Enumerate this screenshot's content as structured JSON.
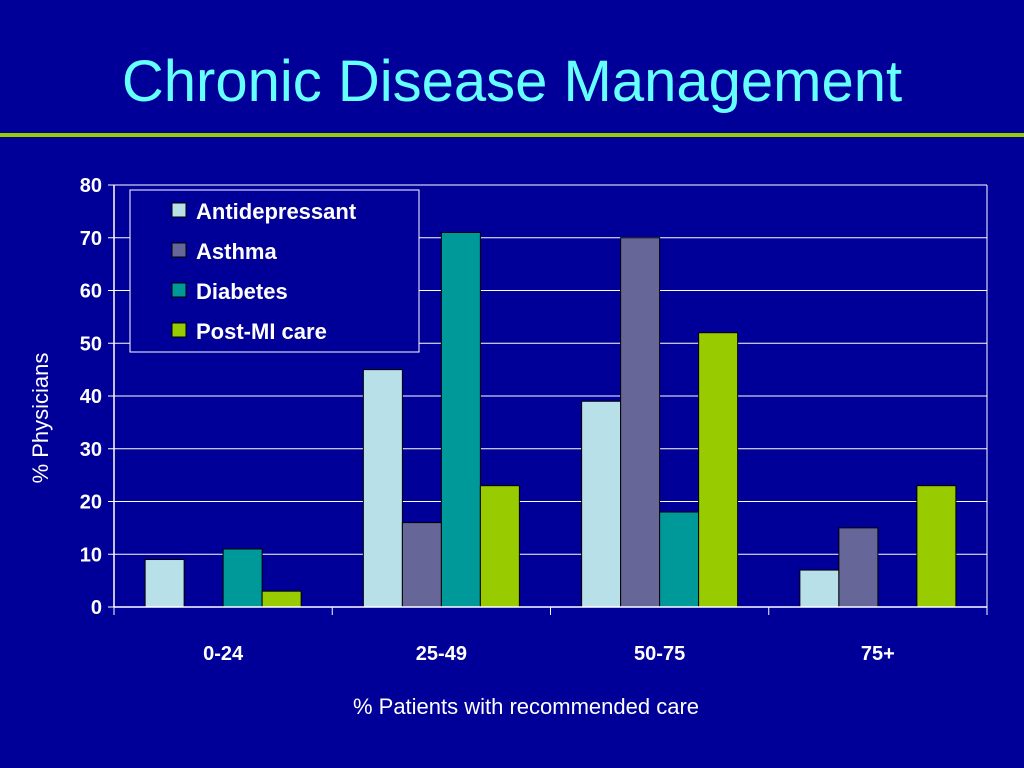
{
  "slide": {
    "title": "Chronic Disease Management"
  },
  "colors": {
    "background": "#000099",
    "title": "#66ffff",
    "rule": "#99cc00",
    "axis_text": "#ffffff"
  },
  "chart_data": {
    "type": "bar",
    "title": "",
    "xlabel": "% Patients with recommended care",
    "ylabel": "% Physicians",
    "categories": [
      "0-24",
      "25-49",
      "50-75",
      "75+"
    ],
    "ylim": [
      0,
      80
    ],
    "yticks": [
      0,
      10,
      20,
      30,
      40,
      50,
      60,
      70,
      80
    ],
    "grid": true,
    "legend_position": "top-left",
    "series": [
      {
        "name": "Antidepressant",
        "color": "#b8e0e8",
        "values": [
          9,
          45,
          39,
          7
        ]
      },
      {
        "name": "Asthma",
        "color": "#666699",
        "values": [
          0,
          16,
          70,
          15
        ]
      },
      {
        "name": "Diabetes",
        "color": "#009999",
        "values": [
          11,
          71,
          18,
          0
        ]
      },
      {
        "name": "Post-MI care",
        "color": "#99cc00",
        "values": [
          3,
          23,
          52,
          23
        ]
      }
    ]
  }
}
